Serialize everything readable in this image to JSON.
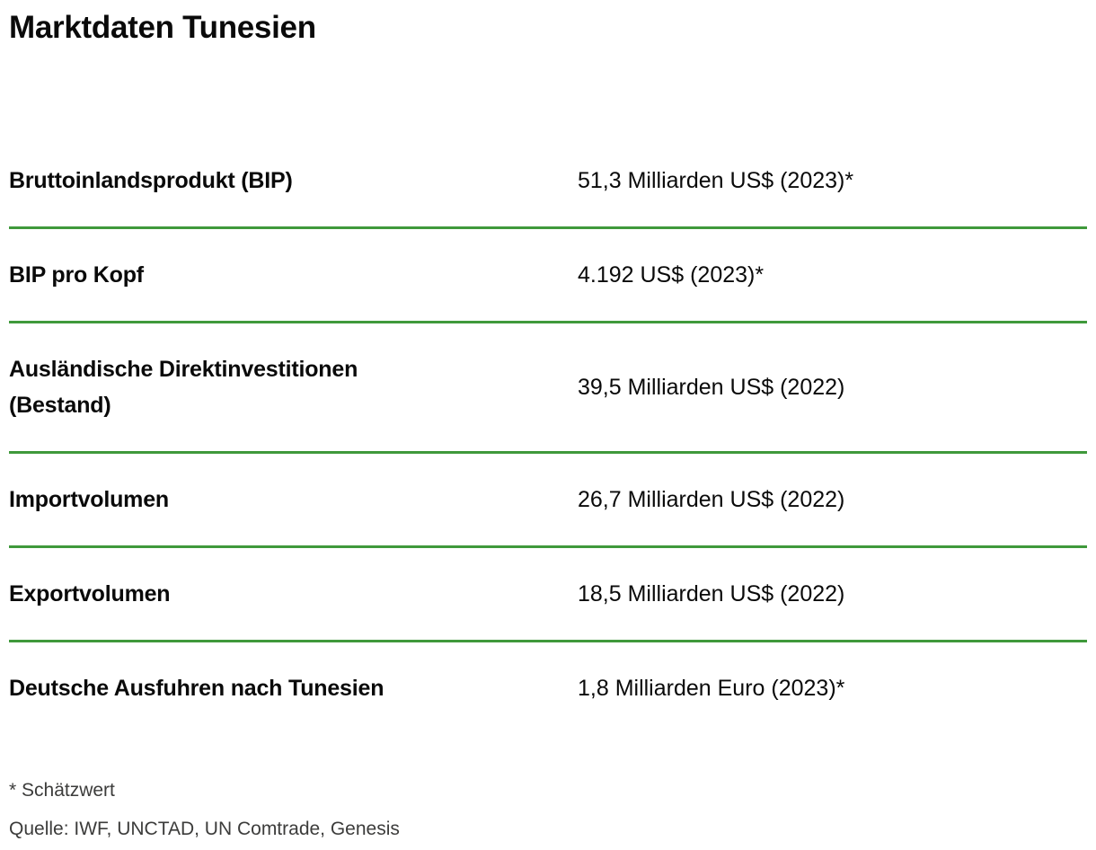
{
  "page": {
    "title": "Marktdaten Tunesien"
  },
  "table": {
    "rows": [
      {
        "label": "Bruttoinlandsprodukt (BIP)",
        "value": "51,3 Milliarden US$ (2023)*"
      },
      {
        "label": "BIP pro Kopf",
        "value": "4.192 US$ (2023)*"
      },
      {
        "label": "Ausländische Direktinvestitionen\n(Bestand)",
        "value": "39,5 Milliarden US$ (2022)"
      },
      {
        "label": "Importvolumen",
        "value": "26,7 Milliarden US$ (2022)"
      },
      {
        "label": "Exportvolumen",
        "value": "18,5 Milliarden US$ (2022)"
      },
      {
        "label": "Deutsche Ausfuhren nach Tunesien",
        "value": "1,8 Milliarden Euro (2023)*"
      }
    ]
  },
  "footnotes": {
    "estimate_note": "* Schätzwert",
    "source_note": "Quelle: IWF, UNCTAD, UN Comtrade, Genesis"
  },
  "colors": {
    "divider_green": "#3f993b",
    "text_primary": "#0a0a0a",
    "text_footnote": "#3c3c3b"
  }
}
